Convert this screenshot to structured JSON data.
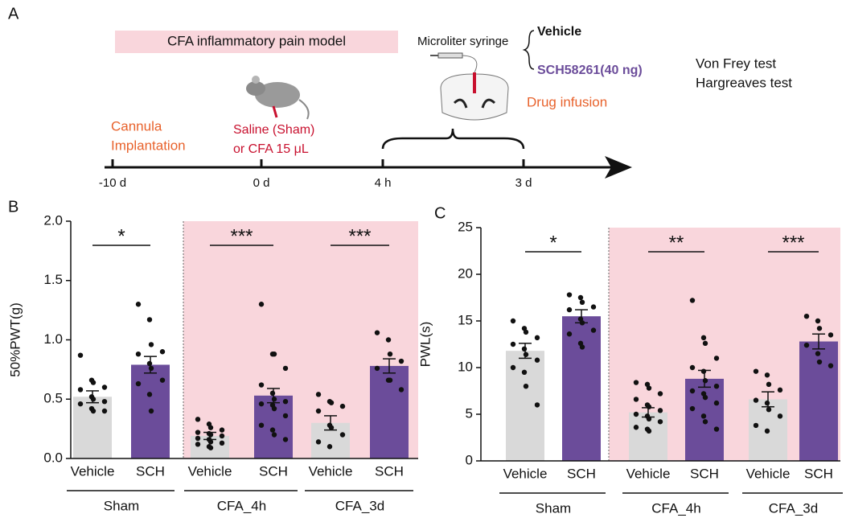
{
  "panel_a": {
    "label": "A",
    "model_label": "CFA inflammatory pain model",
    "timeline": [
      "-10 d",
      "0 d",
      "4 h",
      "3 d"
    ],
    "cannula": [
      "Cannula",
      "Implantation"
    ],
    "injection": [
      "Saline (Sham)",
      "or CFA 15 μL"
    ],
    "syringe": "Microliter syringe",
    "vehicle": "Vehicle",
    "drug": "SCH58261(40 ng)",
    "infusion": "Drug infusion",
    "tests": [
      "Von Frey test",
      "Hargreaves test"
    ]
  },
  "chart_data": [
    {
      "type": "bar",
      "panel_label": "B",
      "ylabel": "50%PWT(g)",
      "categories": [
        "Vehicle",
        "SCH",
        "Vehicle",
        "SCH",
        "Vehicle",
        "SCH"
      ],
      "groups": [
        "Sham",
        "CFA_4h",
        "CFA_3d"
      ],
      "annotations": [
        "*",
        "***",
        "***"
      ],
      "colors": [
        "#d9d9d9",
        "#6b4c9a",
        "#d9d9d9",
        "#6b4c9a",
        "#d9d9d9",
        "#6b4c9a"
      ],
      "shade_color": "#f9d6dc",
      "values": [
        0.52,
        0.79,
        0.19,
        0.53,
        0.3,
        0.78
      ],
      "errors": [
        0.05,
        0.07,
        0.03,
        0.06,
        0.06,
        0.06
      ],
      "points": [
        [
          0.87,
          0.66,
          0.64,
          0.6,
          0.58,
          0.52,
          0.5,
          0.48,
          0.46,
          0.42,
          0.4,
          0.4
        ],
        [
          1.3,
          1.17,
          0.96,
          0.9,
          0.88,
          0.8,
          0.76,
          0.66,
          0.63,
          0.54,
          0.4
        ],
        [
          0.33,
          0.29,
          0.26,
          0.24,
          0.22,
          0.21,
          0.2,
          0.19,
          0.17,
          0.16,
          0.14,
          0.13,
          0.12,
          0.1,
          0.09
        ],
        [
          1.3,
          0.88,
          0.88,
          0.76,
          0.62,
          0.55,
          0.5,
          0.48,
          0.46,
          0.45,
          0.42,
          0.36,
          0.28,
          0.24,
          0.2,
          0.16
        ],
        [
          0.54,
          0.48,
          0.47,
          0.44,
          0.4,
          0.28,
          0.26,
          0.2,
          0.14,
          0.1
        ],
        [
          1.06,
          1.0,
          0.88,
          0.82,
          0.76,
          0.66,
          0.66,
          0.58
        ]
      ],
      "ylim": [
        0,
        2
      ],
      "yticks": [
        {
          "value": 0,
          "label": "0.0"
        },
        {
          "value": 0.5,
          "label": "0.5"
        },
        {
          "value": 1,
          "label": "1.0"
        },
        {
          "value": 1.5,
          "label": "1.5"
        },
        {
          "value": 2,
          "label": "2.0"
        }
      ]
    },
    {
      "type": "bar",
      "panel_label": "C",
      "ylabel": "PWL(s)",
      "categories": [
        "Vehicle",
        "SCH",
        "Vehicle",
        "SCH",
        "Vehicle",
        "SCH"
      ],
      "groups": [
        "Sham",
        "CFA_4h",
        "CFA_3d"
      ],
      "annotations": [
        "*",
        "**",
        "***"
      ],
      "colors": [
        "#d9d9d9",
        "#6b4c9a",
        "#d9d9d9",
        "#6b4c9a",
        "#d9d9d9",
        "#6b4c9a"
      ],
      "shade_color": "#f9d6dc",
      "values": [
        11.8,
        15.5,
        5.2,
        8.8,
        6.6,
        12.8
      ],
      "errors": [
        0.8,
        0.7,
        0.5,
        0.9,
        0.8,
        0.8
      ],
      "points": [
        [
          15.0,
          14.2,
          13.8,
          13.2,
          12.5,
          12.0,
          11.4,
          10.8,
          10.0,
          9.5,
          8.0,
          6.0
        ],
        [
          17.8,
          17.5,
          17.0,
          16.5,
          16.2,
          15.2,
          14.8,
          14.0,
          13.6,
          12.6,
          12.2
        ],
        [
          8.4,
          8.2,
          7.8,
          7.2,
          6.6,
          6.0,
          5.8,
          5.4,
          5.0,
          4.8,
          4.5,
          4.2,
          3.6,
          3.4,
          3.2
        ],
        [
          17.2,
          13.2,
          12.6,
          11.0,
          10.0,
          9.6,
          8.6,
          8.0,
          7.5,
          7.2,
          6.8,
          6.2,
          5.6,
          4.8,
          4.2,
          3.4
        ],
        [
          9.6,
          9.2,
          8.2,
          7.6,
          6.5,
          6.2,
          5.5,
          4.8,
          3.8,
          3.2
        ],
        [
          15.5,
          15.0,
          14.2,
          13.5,
          12.4,
          11.5,
          10.6,
          10.2
        ]
      ],
      "ylim": [
        0,
        25
      ],
      "yticks": [
        0,
        5,
        10,
        15,
        20,
        25
      ]
    }
  ]
}
